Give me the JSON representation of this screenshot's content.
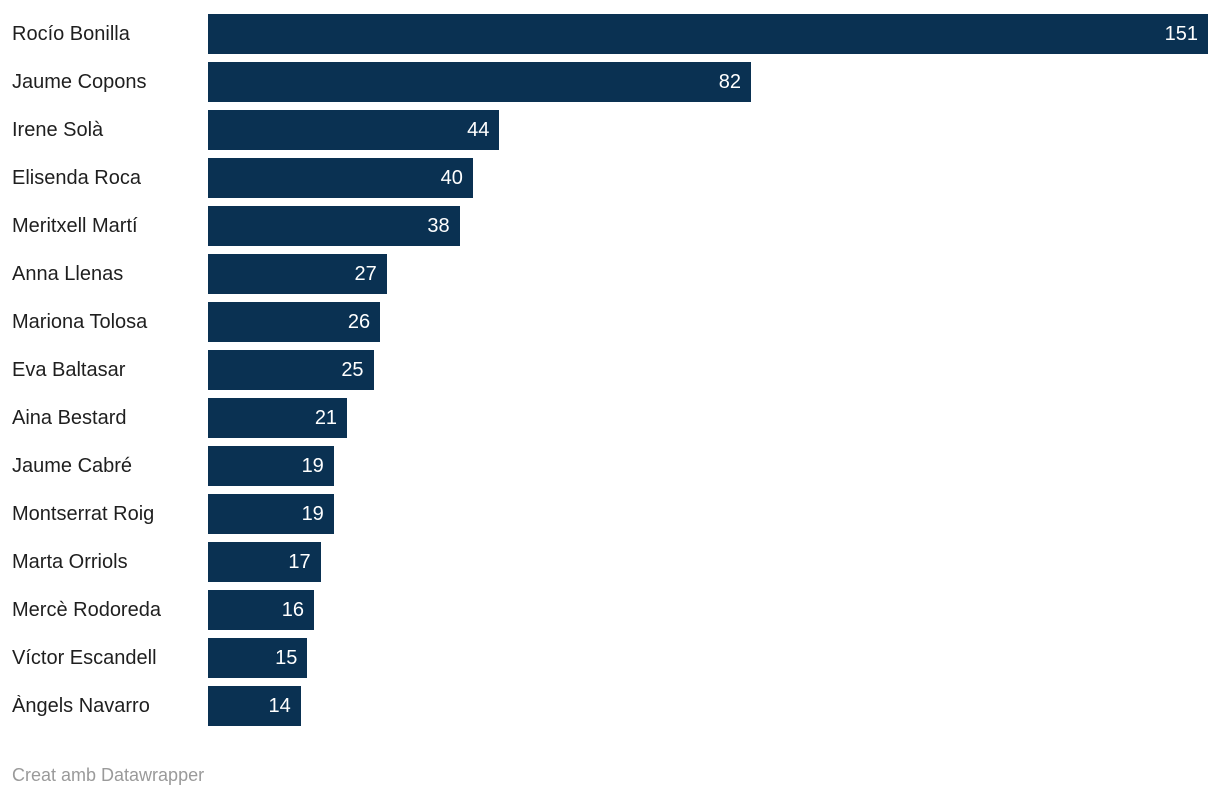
{
  "chart_data": {
    "type": "bar",
    "orientation": "horizontal",
    "title": "",
    "categories": [
      "Rocío Bonilla",
      "Jaume Copons",
      "Irene Solà",
      "Elisenda Roca",
      "Meritxell Martí",
      "Anna Llenas",
      "Mariona Tolosa",
      "Eva Baltasar",
      "Aina Bestard",
      "Jaume Cabré",
      "Montserrat Roig",
      "Marta Orriols",
      "Mercè Rodoreda",
      "Víctor Escandell",
      "Àngels Navarro"
    ],
    "values": [
      151,
      82,
      44,
      40,
      38,
      27,
      26,
      25,
      21,
      19,
      19,
      17,
      16,
      15,
      14
    ],
    "xlim": [
      0,
      151
    ],
    "grid": false,
    "legend": false,
    "value_labels_inside_bars": true,
    "bar_color": "#0a3152",
    "value_label_color": "#ffffff",
    "category_label_color": "#1f1f1f"
  },
  "footer": {
    "credit": "Creat amb Datawrapper",
    "color": "#9a9a9a"
  }
}
